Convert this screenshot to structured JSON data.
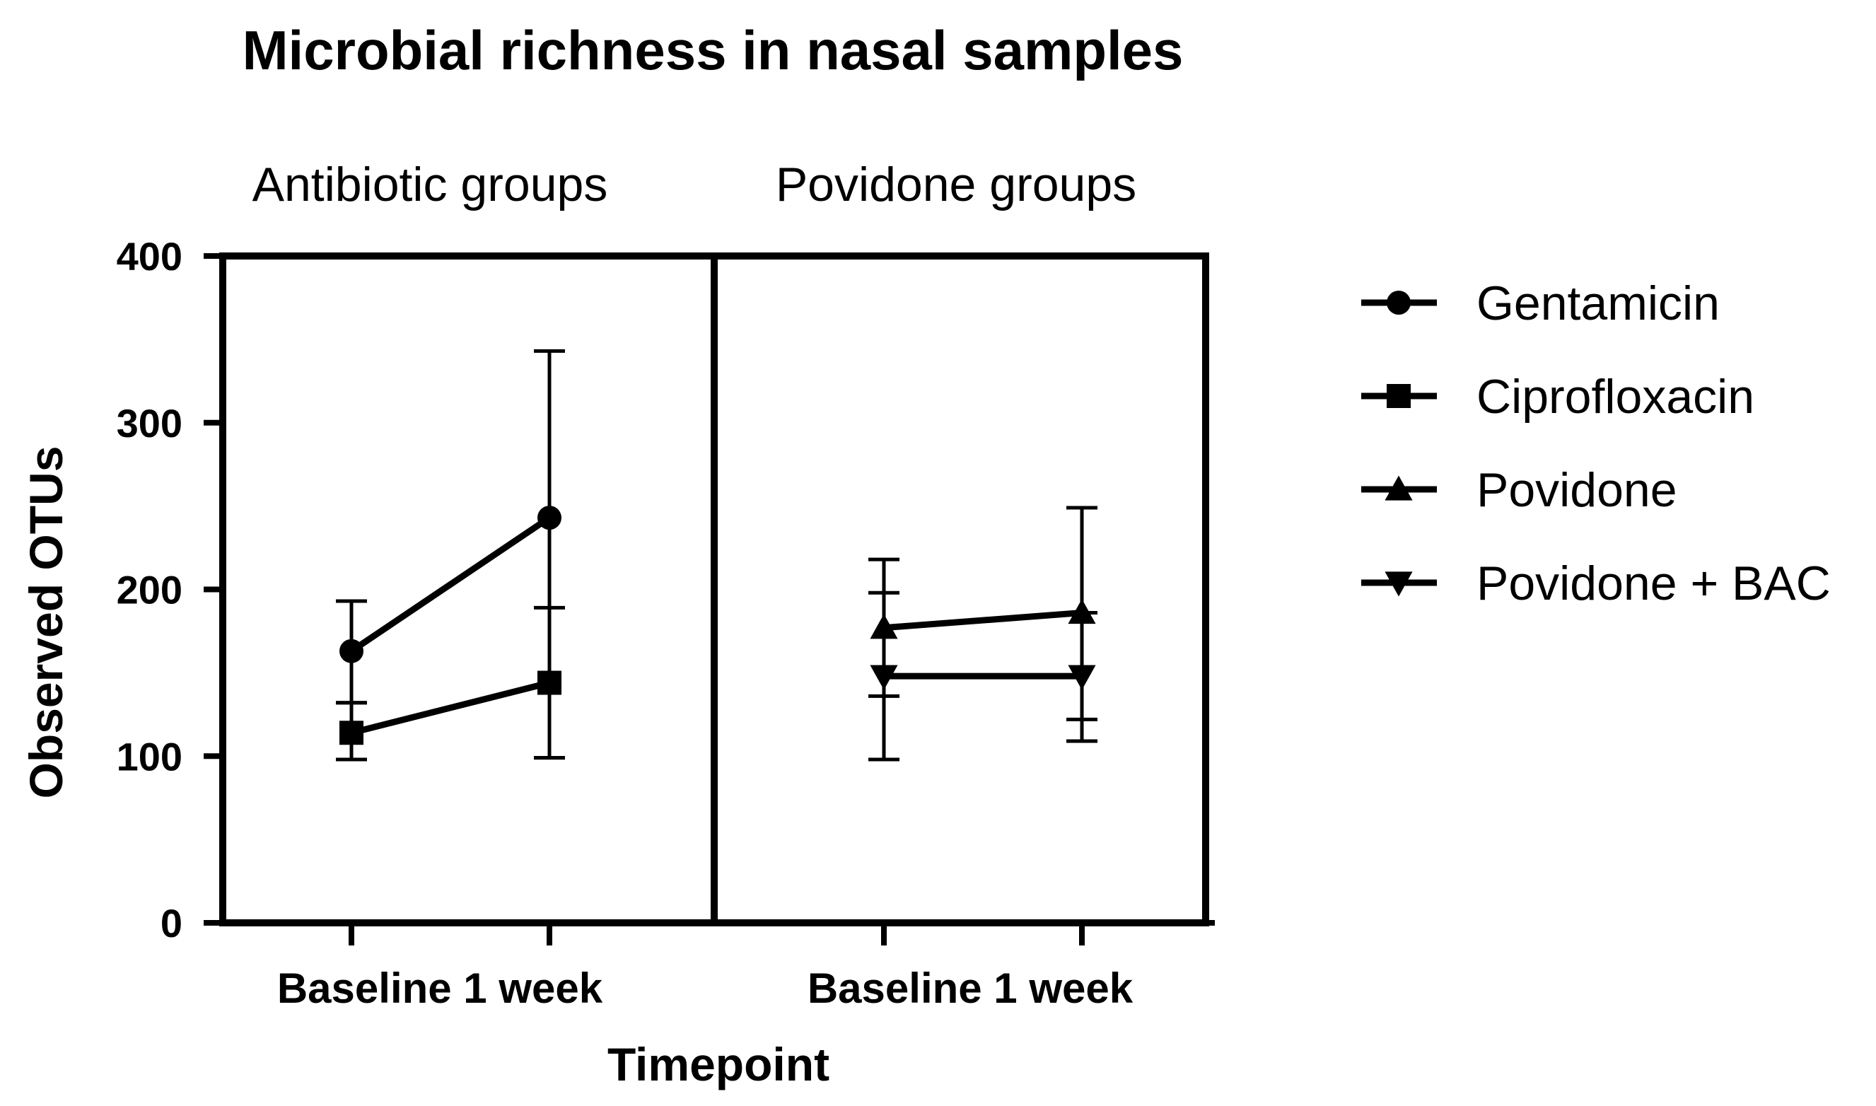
{
  "chart_data": {
    "type": "line",
    "title": "Microbial richness in nasal samples",
    "ylabel": "Observed OTUs",
    "xlabel": "Timepoint",
    "ylim": [
      0,
      400
    ],
    "yticks": [
      0,
      100,
      200,
      300,
      400
    ],
    "categories": [
      "Baseline",
      "1 week"
    ],
    "category_label_text": "Baseline 1 week",
    "panels": [
      {
        "label": "Antibiotic groups",
        "series": [
          {
            "name": "Gentamicin",
            "marker": "circle",
            "values": [
              163,
              243
            ],
            "err_low": [
              132,
              99
            ],
            "err_high": [
              193,
              343
            ]
          },
          {
            "name": "Ciprofloxacin",
            "marker": "square",
            "values": [
              114,
              144
            ],
            "err_low": [
              98,
              99
            ],
            "err_high": [
              132,
              189
            ]
          }
        ]
      },
      {
        "label": "Povidone groups",
        "series": [
          {
            "name": "Povidone",
            "marker": "triangle-up",
            "values": [
              177,
              186
            ],
            "err_low": [
              136,
              122
            ],
            "err_high": [
              218,
              249
            ]
          },
          {
            "name": "Povidone + BAC",
            "marker": "triangle-down",
            "values": [
              148,
              148
            ],
            "err_low": [
              98,
              109
            ],
            "err_high": [
              198,
              186
            ]
          }
        ]
      }
    ],
    "legend": {
      "position": "right",
      "entries": [
        {
          "name": "Gentamicin",
          "marker": "circle"
        },
        {
          "name": "Ciprofloxacin",
          "marker": "square"
        },
        {
          "name": "Povidone",
          "marker": "triangle-up"
        },
        {
          "name": "Povidone + BAC",
          "marker": "triangle-down"
        }
      ]
    },
    "colors": {
      "line": "#000000",
      "background": "#ffffff"
    }
  }
}
